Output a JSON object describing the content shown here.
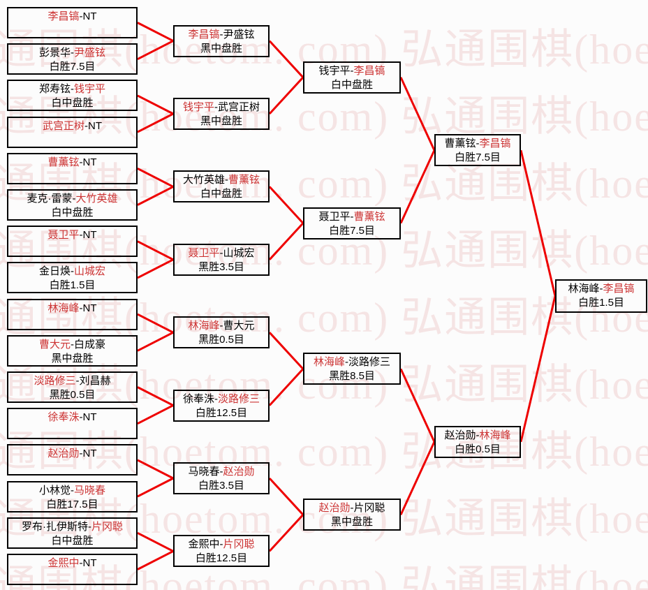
{
  "watermark": {
    "text": "弘通围棋(hoetom. com) 弘通围棋(hoetom. com)",
    "color": "#f5e4e4"
  },
  "colors": {
    "background": "#fcfcfc",
    "box_border": "#000000",
    "text": "#000000",
    "winner_text": "#cc3333",
    "line": "#ee0000"
  },
  "bracket": {
    "rounds": [
      {
        "name": "round-1",
        "matches": [
          {
            "p1": "李昌镐",
            "p2": "NT",
            "winner": 1,
            "result": ""
          },
          {
            "p1": "彭景华",
            "p2": "尹盛铉",
            "winner": 2,
            "result": "白胜7.5目"
          },
          {
            "p1": "郑寿铉",
            "p2": "钱宇平",
            "winner": 2,
            "result": "白中盘胜"
          },
          {
            "p1": "武宫正树",
            "p2": "NT",
            "winner": 1,
            "result": ""
          },
          {
            "p1": "曹薰铉",
            "p2": "NT",
            "winner": 1,
            "result": ""
          },
          {
            "p1": "麦克·雷蒙",
            "p2": "大竹英雄",
            "winner": 2,
            "result": "白中盘胜"
          },
          {
            "p1": "聂卫平",
            "p2": "NT",
            "winner": 1,
            "result": ""
          },
          {
            "p1": "金日焕",
            "p2": "山城宏",
            "winner": 2,
            "result": "白胜1.5目"
          },
          {
            "p1": "林海峰",
            "p2": "NT",
            "winner": 1,
            "result": ""
          },
          {
            "p1": "曹大元",
            "p2": "白成豪",
            "winner": 1,
            "result": "黑中盘胜"
          },
          {
            "p1": "淡路修三",
            "p2": "刘昌赫",
            "winner": 1,
            "result": "黑胜0.5目"
          },
          {
            "p1": "徐奉洙",
            "p2": "NT",
            "winner": 1,
            "result": ""
          },
          {
            "p1": "赵治勋",
            "p2": "NT",
            "winner": 1,
            "result": ""
          },
          {
            "p1": "小林觉",
            "p2": "马晓春",
            "winner": 2,
            "result": "白胜17.5目"
          },
          {
            "p1": "罗布·扎伊斯特",
            "p2": "片冈聪",
            "winner": 2,
            "result": "白中盘胜"
          },
          {
            "p1": "金熙中",
            "p2": "NT",
            "winner": 1,
            "result": ""
          }
        ]
      },
      {
        "name": "round-2",
        "matches": [
          {
            "p1": "李昌镐",
            "p2": "尹盛铉",
            "winner": 1,
            "result": "黑中盘胜"
          },
          {
            "p1": "钱宇平",
            "p2": "武宫正树",
            "winner": 1,
            "result": "黑中盘胜"
          },
          {
            "p1": "大竹英雄",
            "p2": "曹薰铉",
            "winner": 2,
            "result": "白中盘胜"
          },
          {
            "p1": "聂卫平",
            "p2": "山城宏",
            "winner": 1,
            "result": "黑胜3.5目"
          },
          {
            "p1": "林海峰",
            "p2": "曹大元",
            "winner": 1,
            "result": "黑胜0.5目"
          },
          {
            "p1": "徐奉洙",
            "p2": "淡路修三",
            "winner": 2,
            "result": "白胜12.5目"
          },
          {
            "p1": "马晓春",
            "p2": "赵治勋",
            "winner": 2,
            "result": "白胜3.5目"
          },
          {
            "p1": "金熙中",
            "p2": "片冈聪",
            "winner": 2,
            "result": "白胜12.5目"
          }
        ]
      },
      {
        "name": "quarterfinal",
        "matches": [
          {
            "p1": "钱宇平",
            "p2": "李昌镐",
            "winner": 2,
            "result": "白中盘胜"
          },
          {
            "p1": "聂卫平",
            "p2": "曹薰铉",
            "winner": 2,
            "result": "白胜7.5目"
          },
          {
            "p1": "林海峰",
            "p2": "淡路修三",
            "winner": 1,
            "result": "黑胜8.5目"
          },
          {
            "p1": "赵治勋",
            "p2": "片冈聪",
            "winner": 1,
            "result": "黑中盘胜"
          }
        ]
      },
      {
        "name": "semifinal",
        "matches": [
          {
            "p1": "曹薰铉",
            "p2": "李昌镐",
            "winner": 2,
            "result": "白胜7.5目"
          },
          {
            "p1": "赵治勋",
            "p2": "林海峰",
            "winner": 2,
            "result": "白胜0.5目"
          }
        ]
      },
      {
        "name": "final",
        "matches": [
          {
            "p1": "林海峰",
            "p2": "李昌镐",
            "winner": 2,
            "result": "白胜1.5目"
          }
        ]
      }
    ]
  }
}
